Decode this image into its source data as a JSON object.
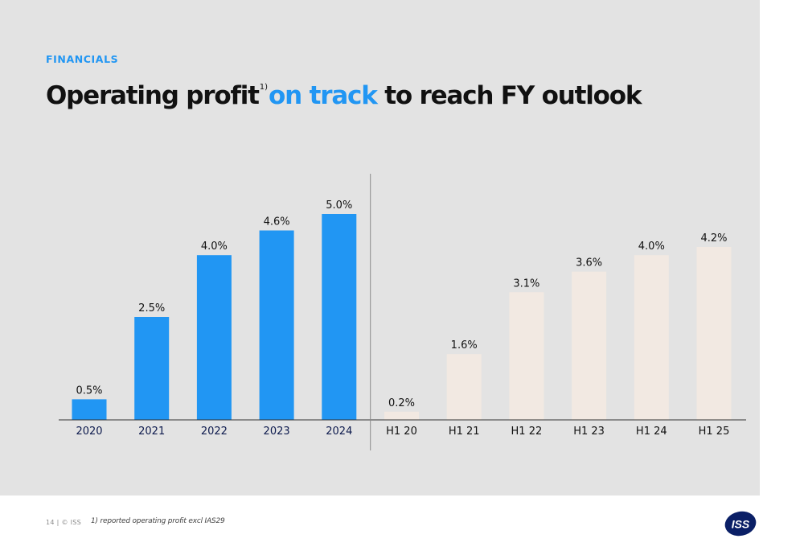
{
  "header": {
    "kicker": "FINANCIALS",
    "title_part1": "Operating profit",
    "title_sup": "1)",
    "title_accent": "on track",
    "title_part2": " to reach FY outlook"
  },
  "footer": {
    "page_info": "14  |  © ISS",
    "footnote": "1) reported operating profit excl IAS29"
  },
  "logo": {
    "text": "ISS"
  },
  "colors": {
    "accent": "#2196f3",
    "annual_bar": "#2196f3",
    "halfyear_bar": "#f2e9e2",
    "background": "#e3e3e3"
  },
  "chart_data": {
    "type": "bar",
    "categories": [
      "2020",
      "2021",
      "2022",
      "2023",
      "2024",
      "H1 20",
      "H1 21",
      "H1 22",
      "H1 23",
      "H1 24",
      "H1 25"
    ],
    "values": [
      0.5,
      2.5,
      4.0,
      4.6,
      5.0,
      0.2,
      1.6,
      3.1,
      3.6,
      4.0,
      4.2
    ],
    "labels": [
      "0.5%",
      "2.5%",
      "4.0%",
      "4.6%",
      "5.0%",
      "0.2%",
      "1.6%",
      "3.1%",
      "3.6%",
      "4.0%",
      "4.2%"
    ],
    "groups": [
      "annual",
      "annual",
      "annual",
      "annual",
      "annual",
      "half-year",
      "half-year",
      "half-year",
      "half-year",
      "half-year",
      "half-year"
    ],
    "ylim": [
      0,
      5.5
    ],
    "unit": "%",
    "grid": false,
    "legend": "none"
  }
}
